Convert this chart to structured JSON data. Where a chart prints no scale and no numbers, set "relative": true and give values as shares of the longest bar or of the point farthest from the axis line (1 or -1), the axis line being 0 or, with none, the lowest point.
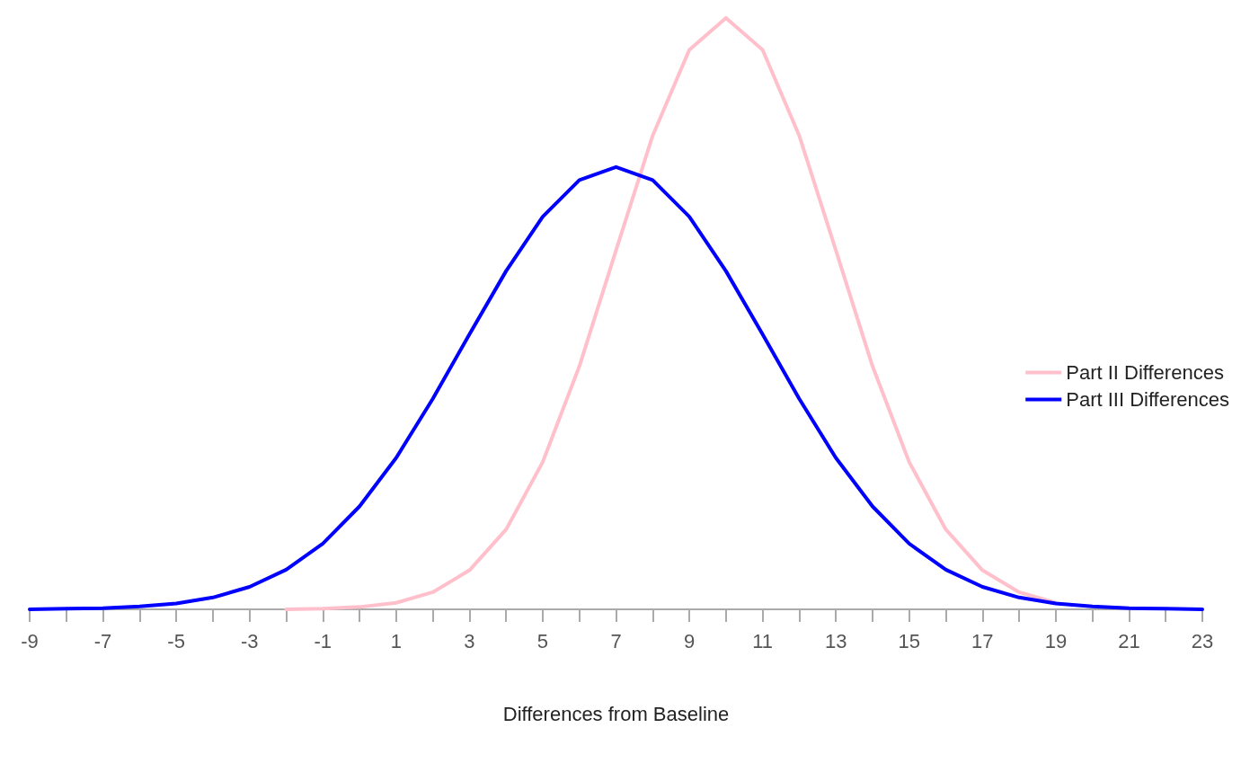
{
  "chart_data": {
    "type": "line",
    "xlabel": "Differences from Baseline",
    "relative": true,
    "legend": "right",
    "line_style": "solid",
    "xlim": [
      -9,
      23
    ],
    "xticks": [
      -9,
      {
        "value": -8,
        "label": null
      },
      -7,
      {
        "value": -6,
        "label": null
      },
      -5,
      {
        "value": -4,
        "label": null
      },
      -3,
      {
        "value": -2,
        "label": null
      },
      -1,
      {
        "value": 0,
        "label": null
      },
      1,
      {
        "value": 2,
        "label": null
      },
      3,
      {
        "value": 4,
        "label": null
      },
      5,
      {
        "value": 6,
        "label": null
      },
      7,
      {
        "value": 8,
        "label": null
      },
      9,
      {
        "value": 10,
        "label": null
      },
      11,
      {
        "value": 12,
        "label": null
      },
      13,
      {
        "value": 14,
        "label": null
      },
      15,
      {
        "value": 16,
        "label": null
      },
      17,
      {
        "value": 18,
        "label": null
      },
      19,
      {
        "value": 20,
        "label": null
      },
      21,
      {
        "value": 22,
        "label": null
      },
      23
    ],
    "series": [
      {
        "name": "Part II Differences",
        "color": "#ffc0cb",
        "x": [
          -2,
          -1,
          0,
          1,
          2,
          3,
          4,
          5,
          6,
          7,
          8,
          9,
          10,
          11,
          12,
          13,
          14,
          15,
          16,
          17,
          18,
          19
        ],
        "values": [
          0.0,
          0.001,
          0.004,
          0.011,
          0.029,
          0.066,
          0.135,
          0.249,
          0.411,
          0.607,
          0.801,
          0.946,
          1,
          0.946,
          0.801,
          0.607,
          0.411,
          0.249,
          0.135,
          0.066,
          0.029,
          0.011
        ]
      },
      {
        "name": "Part III Differences",
        "color": "#0000ff",
        "x": [
          -9,
          -8,
          -7,
          -6,
          -5,
          -4,
          -3,
          -2,
          -1,
          0,
          1,
          2,
          3,
          4,
          5,
          6,
          7,
          8,
          9,
          10,
          11,
          12,
          13,
          14,
          15,
          16,
          17,
          18,
          19,
          20,
          21,
          22,
          23
        ],
        "values": [
          0.0,
          0.001,
          0.002,
          0.005,
          0.01,
          0.02,
          0.038,
          0.067,
          0.111,
          0.174,
          0.256,
          0.356,
          0.465,
          0.572,
          0.664,
          0.726,
          0.748,
          0.726,
          0.664,
          0.572,
          0.465,
          0.356,
          0.256,
          0.174,
          0.111,
          0.067,
          0.038,
          0.02,
          0.01,
          0.005,
          0.002,
          0.001,
          0.0
        ]
      }
    ]
  }
}
